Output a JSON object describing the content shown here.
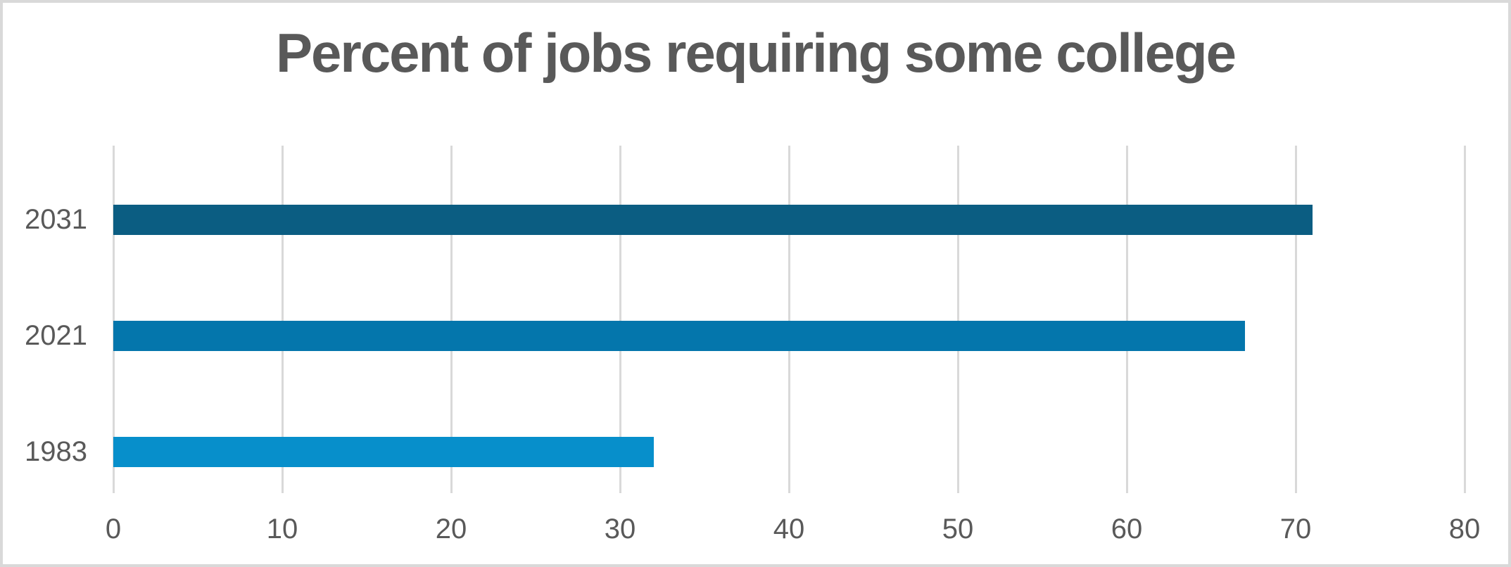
{
  "chart_data": {
    "type": "bar",
    "orientation": "horizontal",
    "title": "Percent of jobs requiring some college",
    "categories": [
      "2031",
      "2021",
      "1983"
    ],
    "values": [
      71,
      67,
      32
    ],
    "series": [
      {
        "name": "Percent of jobs requiring some college",
        "values": [
          71,
          67,
          32
        ]
      }
    ],
    "xlabel": "",
    "ylabel": "",
    "xlim": [
      0,
      80
    ],
    "x_ticks": [
      "0",
      "10",
      "20",
      "30",
      "40",
      "50",
      "60",
      "70",
      "80"
    ],
    "grid": "vertical-gridlines-on",
    "legend": "none",
    "bar_colors": [
      "#0b5d82",
      "#0476ac",
      "#078fcb"
    ],
    "gridline_color": "#d9d9d9",
    "axis_text_color": "#595959",
    "title_color": "#595959",
    "background_color": "#ffffff",
    "border_color": "#d9d9d9"
  }
}
